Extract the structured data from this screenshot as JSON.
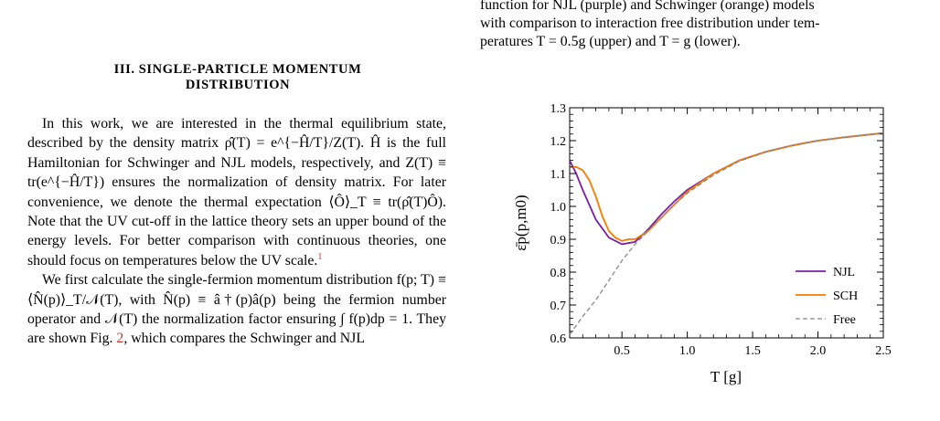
{
  "section": {
    "heading_line1": "III.   SINGLE-PARTICLE MOMENTUM",
    "heading_line2": "DISTRIBUTION"
  },
  "body": {
    "p1": "In this work, we are interested in the thermal equilibrium state, described by the density matrix ρ̂(T) = e^{−Ĥ/T}/Z(T). Ĥ is the full Hamiltonian for Schwinger and NJL models, respectively, and Z(T) ≡ tr(e^{−Ĥ/T}) ensures the normalization of density matrix. For later convenience, we denote the thermal expectation ⟨Ô⟩_T ≡ tr(ρ̂(T)Ô). Note that the UV cut-off in the lattice theory sets an upper bound of the energy levels. For better comparison with continuous theories, one should focus on temperatures below the UV scale.",
    "footnote_mark": "1",
    "p2_start": "We first calculate the single-fermion momentum distribution f(p; T) ≡ ⟨N̂(p)⟩_T/𝒩(T), with N̂(p) ≡ â†(p)â(p) being the fermion number operator and 𝒩(T) the normalization factor ensuring ∫ f(p)dp = 1. They are shown Fig.",
    "p2_ref": "2",
    "p2_end": ", which compares the Schwinger and NJL"
  },
  "caption": {
    "line1": "function for NJL (purple) and Schwinger (orange) models",
    "line2": "with comparison to interaction free distribution under tem-",
    "line3": "peratures T = 0.5g (upper) and T = g (lower)."
  },
  "chart_data": {
    "type": "line",
    "xlabel": "T [g]",
    "ylabel": "ε̄p(p,m0)",
    "xlim": [
      0.1,
      2.5
    ],
    "ylim": [
      0.6,
      1.3
    ],
    "xticks": [
      0.5,
      1.0,
      1.5,
      2.0,
      2.5
    ],
    "xtick_labels": [
      "0.5",
      "1.0",
      "1.5",
      "2.0",
      "2.5"
    ],
    "yticks": [
      0.6,
      0.7,
      0.8,
      0.9,
      1.0,
      1.1,
      1.2,
      1.3
    ],
    "ytick_labels": [
      "0.6",
      "0.7",
      "0.8",
      "0.9",
      "1.0",
      "1.1",
      "1.2",
      "1.3"
    ],
    "grid": false,
    "legend_position": "bottom-right",
    "series": [
      {
        "name": "NJL",
        "color": "#7b1fa2",
        "dash": false,
        "x": [
          0.1,
          0.15,
          0.2,
          0.3,
          0.4,
          0.5,
          0.6,
          0.7,
          0.8,
          0.9,
          1.0,
          1.2,
          1.4,
          1.6,
          1.8,
          2.0,
          2.2,
          2.5
        ],
        "y": [
          1.14,
          1.1,
          1.05,
          0.96,
          0.905,
          0.885,
          0.892,
          0.93,
          0.975,
          1.015,
          1.05,
          1.1,
          1.14,
          1.166,
          1.185,
          1.2,
          1.21,
          1.223
        ]
      },
      {
        "name": "SCH",
        "color": "#f57c00",
        "dash": false,
        "x": [
          0.1,
          0.15,
          0.2,
          0.25,
          0.3,
          0.35,
          0.4,
          0.45,
          0.5,
          0.55,
          0.6,
          0.7,
          0.8,
          0.9,
          1.0,
          1.2,
          1.4,
          1.6,
          1.8,
          2.0,
          2.2,
          2.5
        ],
        "y": [
          1.12,
          1.12,
          1.11,
          1.08,
          1.03,
          0.97,
          0.925,
          0.905,
          0.895,
          0.9,
          0.9,
          0.925,
          0.965,
          1.005,
          1.045,
          1.1,
          1.14,
          1.166,
          1.185,
          1.2,
          1.21,
          1.223
        ]
      },
      {
        "name": "Free",
        "color": "#888888",
        "dash": true,
        "x": [
          0.1,
          0.2,
          0.3,
          0.4,
          0.5,
          0.6,
          0.7,
          0.8,
          0.9,
          1.0,
          1.2,
          1.4,
          1.6,
          1.8,
          2.0,
          2.2,
          2.5
        ],
        "y": [
          0.61,
          0.665,
          0.715,
          0.775,
          0.835,
          0.885,
          0.925,
          0.965,
          1.005,
          1.04,
          1.095,
          1.138,
          1.165,
          1.185,
          1.2,
          1.21,
          1.223
        ]
      }
    ]
  }
}
